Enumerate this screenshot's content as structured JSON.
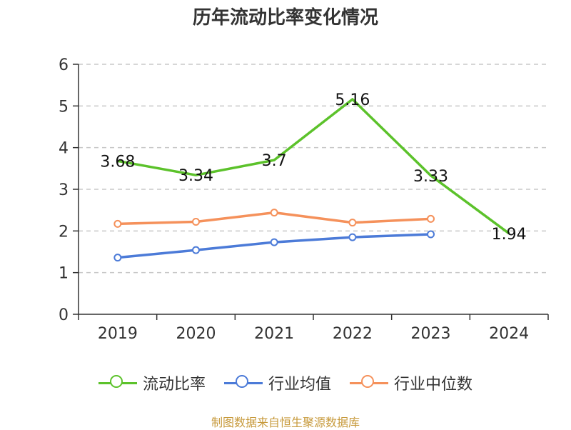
{
  "chart_data": {
    "type": "line",
    "title": "历年流动比率变化情况",
    "categories": [
      "2019",
      "2020",
      "2021",
      "2022",
      "2023",
      "2024"
    ],
    "yticks": [
      "0",
      "1",
      "2",
      "3",
      "4",
      "5",
      "6"
    ],
    "ylim": [
      0,
      6
    ],
    "grid": true,
    "series": [
      {
        "name": "流动比率",
        "color": "#5cc22b",
        "values": [
          3.68,
          3.34,
          3.7,
          5.16,
          3.33,
          1.94
        ],
        "labels": [
          "3.68",
          "3.34",
          "3.7",
          "5.16",
          "3.33",
          "1.94"
        ]
      },
      {
        "name": "行业均值",
        "color": "#4c7bd8",
        "values": [
          1.36,
          1.54,
          1.73,
          1.85,
          1.92,
          null
        ]
      },
      {
        "name": "行业中位数",
        "color": "#f5915b",
        "values": [
          2.17,
          2.22,
          2.44,
          2.2,
          2.29,
          null
        ]
      }
    ],
    "legend_position": "bottom",
    "source": "制图数据来自恒生聚源数据库"
  }
}
